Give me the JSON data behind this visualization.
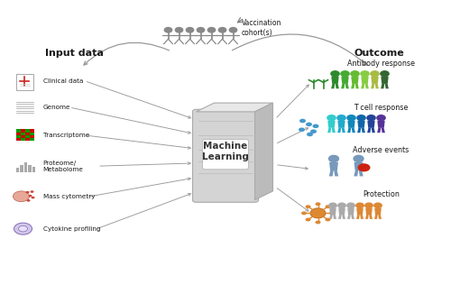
{
  "figsize": [
    5.0,
    3.26
  ],
  "dpi": 100,
  "bg_color": "#ffffff",
  "input_data_title": "Input data",
  "outcome_title": "Outcome",
  "ml_label": "Machine\nLearning",
  "vaccination_label": "Vaccination\ncohort(s)",
  "input_items": [
    "Clinical data",
    "Genome",
    "Transcriptome",
    "Proteome/\nMetabolome",
    "Mass cytometry",
    "Cytokine profiling"
  ],
  "outcome_items": [
    "Antibody response",
    "T cell response",
    "Adverse events",
    "Protection"
  ],
  "arrow_color": "#999999",
  "text_color": "#1a1a1a",
  "antibody_colors": [
    "#2d8a2d",
    "#44aa33",
    "#66bb33",
    "#88cc44",
    "#aabb44",
    "#336633"
  ],
  "tcell_colors": [
    "#33cccc",
    "#22aacc",
    "#1188bb",
    "#1166aa",
    "#224499",
    "#553399"
  ],
  "protection_colors_grey": [
    "#aaaaaa",
    "#aaaaaa",
    "#aaaaaa"
  ],
  "protection_colors_orange": [
    "#dd8833",
    "#dd8833",
    "#dd8833"
  ],
  "adverse_color": "#7799bb",
  "person_grey": "#888888",
  "virus_color": "#dd8833"
}
